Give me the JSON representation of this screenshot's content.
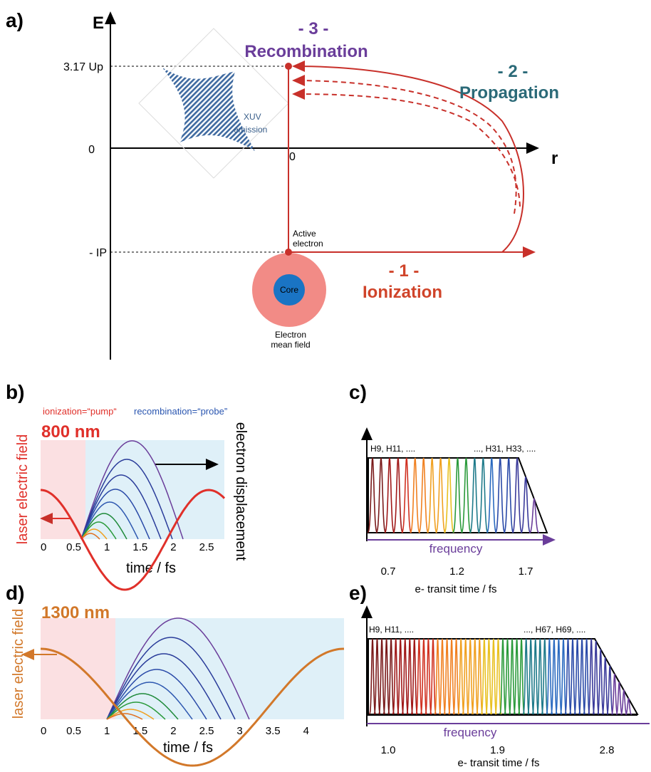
{
  "panel_a": {
    "label": "a)",
    "y_axis": "E",
    "x_axis": "r",
    "y_ticks": [
      "3.17 Up",
      "0",
      "- IP"
    ],
    "x_tick": "0",
    "steps": [
      {
        "number": "- 3 -",
        "name": "Recombination"
      },
      {
        "number": "- 2 -",
        "name": "Propagation"
      },
      {
        "number": "- 1 -",
        "name": "Ionization"
      }
    ],
    "xuv": [
      "XUV",
      "emission"
    ],
    "active_electron": [
      "Active",
      "electron"
    ],
    "core": "Core",
    "mean_field": [
      "Electron",
      "mean field"
    ]
  },
  "panel_b": {
    "label": "b)",
    "pump": "ionization=“pump“",
    "probe": "recombination=“probe”",
    "wavelength": "800 nm",
    "y_label": "laser electric field",
    "y2_label": "electron displacement",
    "x_label": "time / fs",
    "x_ticks": [
      "0",
      "0.5",
      "1",
      "1.5",
      "2",
      "2.5"
    ]
  },
  "panel_c": {
    "label": "c)",
    "harmonics_low": "H9, H11, ....",
    "harmonics_high": "..., H31, H33, ....",
    "axis": "frequency",
    "x_label": "e- transit time / fs",
    "x_ticks": [
      "0.7",
      "1.2",
      "1.7"
    ]
  },
  "panel_d": {
    "label": "d)",
    "wavelength": "1300 nm",
    "y_label": "laser electric field",
    "x_label": "time / fs",
    "x_ticks": [
      "0",
      "0.5",
      "1",
      "1.5",
      "2",
      "2.5",
      "3",
      "3.5",
      "4"
    ]
  },
  "panel_e": {
    "label": "e)",
    "harmonics_low": "H9, H11, ....",
    "harmonics_high": "..., H67, H69, ....",
    "axis": "frequency",
    "x_label": "e- transit time / fs",
    "x_ticks": [
      "1.0",
      "1.9",
      "2.8"
    ]
  }
}
